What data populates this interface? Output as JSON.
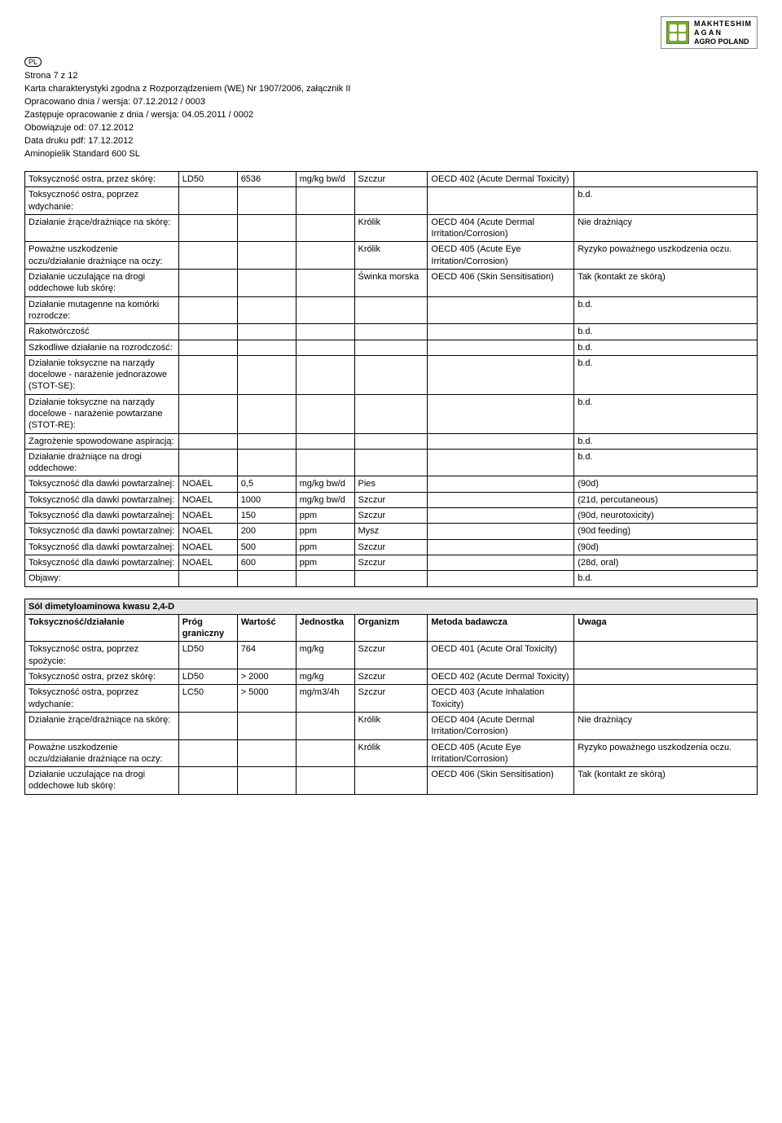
{
  "logo": {
    "line1": "MAKHTESHIM",
    "line2": "A G A N",
    "line3": "AGRO POLAND"
  },
  "pl_badge": "PL",
  "header": {
    "page_line": "Strona  7 z 12",
    "title_line": "Karta charakterystyki zgodna z Rozporządzeniem (WE) Nr 1907/2006, załącznik II",
    "prepared": "Opracowano dnia / wersja: 07.12.2012  / 0003",
    "replaces": "Zastępuje opracowanie z dnia / wersja: 04.05.2011  / 0002",
    "valid_from": "Obowiązuje od: 07.12.2012",
    "print_date": "Data druku pdf: 17.12.2012",
    "product": "Aminopielik Standard 600 SL"
  },
  "abbr_bd": "b.d.",
  "t1": {
    "rows": [
      {
        "param": "Toksyczność ostra, przez skórę:",
        "prog": "LD50",
        "val": "6536",
        "unit": "mg/kg bw/d",
        "org": "Szczur",
        "meth": "OECD 402 (Acute Dermal Toxicity)",
        "note": ""
      },
      {
        "param": "Toksyczność ostra, poprzez wdychanie:",
        "prog": "",
        "val": "",
        "unit": "",
        "org": "",
        "meth": "",
        "note": "b.d."
      },
      {
        "param": "Działanie żrące/drażniące na skórę:",
        "prog": "",
        "val": "",
        "unit": "",
        "org": "Królik",
        "meth": "OECD 404 (Acute Dermal Irritation/Corrosion)",
        "note": "Nie drażniący"
      },
      {
        "param": "Poważne uszkodzenie oczu/działanie drażniące na oczy:",
        "prog": "",
        "val": "",
        "unit": "",
        "org": "Królik",
        "meth": "OECD 405 (Acute Eye Irritation/Corrosion)",
        "note": "Ryzyko poważnego uszkodzenia oczu."
      },
      {
        "param": "Działanie uczulające na drogi oddechowe lub skórę:",
        "prog": "",
        "val": "",
        "unit": "",
        "org": "Świnka morska",
        "meth": "OECD 406 (Skin Sensitisation)",
        "note": "Tak (kontakt ze skórą)"
      },
      {
        "param": "Działanie mutagenne na komórki rozrodcze:",
        "prog": "",
        "val": "",
        "unit": "",
        "org": "",
        "meth": "",
        "note": "b.d."
      },
      {
        "param": "Rakotwórczość",
        "prog": "",
        "val": "",
        "unit": "",
        "org": "",
        "meth": "",
        "note": "b.d."
      },
      {
        "param": "Szkodliwe działanie na rozrodczość:",
        "prog": "",
        "val": "",
        "unit": "",
        "org": "",
        "meth": "",
        "note": "b.d."
      },
      {
        "param": "Działanie toksyczne na narządy docelowe - narażenie jednorazowe (STOT-SE):",
        "prog": "",
        "val": "",
        "unit": "",
        "org": "",
        "meth": "",
        "note": "b.d."
      },
      {
        "param": "Działanie toksyczne na narządy docelowe - narażenie powtarzane (STOT-RE):",
        "prog": "",
        "val": "",
        "unit": "",
        "org": "",
        "meth": "",
        "note": "b.d."
      },
      {
        "param": "Zagrożenie spowodowane aspiracją:",
        "prog": "",
        "val": "",
        "unit": "",
        "org": "",
        "meth": "",
        "note": "b.d."
      },
      {
        "param": "Działanie drażniące na drogi oddechowe:",
        "prog": "",
        "val": "",
        "unit": "",
        "org": "",
        "meth": "",
        "note": "b.d."
      },
      {
        "param": "Toksyczność dla dawki powtarzalnej:",
        "prog": "NOAEL",
        "val": "0,5",
        "unit": "mg/kg bw/d",
        "org": "Pies",
        "meth": "",
        "note": "(90d)"
      },
      {
        "param": "Toksyczność dla dawki powtarzalnej:",
        "prog": "NOAEL",
        "val": "1000",
        "unit": "mg/kg bw/d",
        "org": "Szczur",
        "meth": "",
        "note": "(21d, percutaneous)"
      },
      {
        "param": "Toksyczność dla dawki powtarzalnej:",
        "prog": "NOAEL",
        "val": "150",
        "unit": "ppm",
        "org": "Szczur",
        "meth": "",
        "note": "(90d, neurotoxicity)"
      },
      {
        "param": "Toksyczność dla dawki powtarzalnej:",
        "prog": "NOAEL",
        "val": "200",
        "unit": "ppm",
        "org": "Mysz",
        "meth": "",
        "note": "(90d feeding)"
      },
      {
        "param": "Toksyczność dla dawki powtarzalnej:",
        "prog": "NOAEL",
        "val": "500",
        "unit": "ppm",
        "org": "Szczur",
        "meth": "",
        "note": "(90d)"
      },
      {
        "param": "Toksyczność dla dawki powtarzalnej:",
        "prog": "NOAEL",
        "val": "600",
        "unit": "ppm",
        "org": "Szczur",
        "meth": "",
        "note": "(28d, oral)"
      },
      {
        "param": "Objawy:",
        "prog": "",
        "val": "",
        "unit": "",
        "org": "",
        "meth": "",
        "note": "b.d."
      }
    ]
  },
  "t2": {
    "section_title": "Sól dimetyloaminowa kwasu 2,4-D",
    "headers": {
      "param": "Toksyczność/działanie",
      "prog": "Próg graniczny",
      "val": "Wartość",
      "unit": "Jednostka",
      "org": "Organizm",
      "meth": "Metoda badawcza",
      "note": "Uwaga"
    },
    "rows": [
      {
        "param": "Toksyczność ostra, poprzez spożycie:",
        "prog": "LD50",
        "val": "764",
        "unit": "mg/kg",
        "org": "Szczur",
        "meth": "OECD 401 (Acute Oral Toxicity)",
        "note": ""
      },
      {
        "param": "Toksyczność ostra, przez skórę:",
        "prog": "LD50",
        "val": "> 2000",
        "unit": "mg/kg",
        "org": "Szczur",
        "meth": "OECD 402 (Acute Dermal Toxicity)",
        "note": ""
      },
      {
        "param": "Toksyczność ostra, poprzez wdychanie:",
        "prog": "LC50",
        "val": "> 5000",
        "unit": "mg/m3/4h",
        "org": "Szczur",
        "meth": "OECD 403 (Acute Inhalation Toxicity)",
        "note": ""
      },
      {
        "param": "Działanie żrące/drażniące na skórę:",
        "prog": "",
        "val": "",
        "unit": "",
        "org": "Królik",
        "meth": "OECD 404 (Acute Dermal Irritation/Corrosion)",
        "note": "Nie drażniący"
      },
      {
        "param": "Poważne uszkodzenie oczu/działanie drażniące na oczy:",
        "prog": "",
        "val": "",
        "unit": "",
        "org": "Królik",
        "meth": "OECD 405 (Acute Eye Irritation/Corrosion)",
        "note": "Ryzyko poważnego uszkodzenia oczu."
      },
      {
        "param": "Działanie uczulające na drogi oddechowe lub skórę:",
        "prog": "",
        "val": "",
        "unit": "",
        "org": "",
        "meth": "OECD 406 (Skin Sensitisation)",
        "note": "Tak (kontakt ze skórą)"
      }
    ]
  }
}
